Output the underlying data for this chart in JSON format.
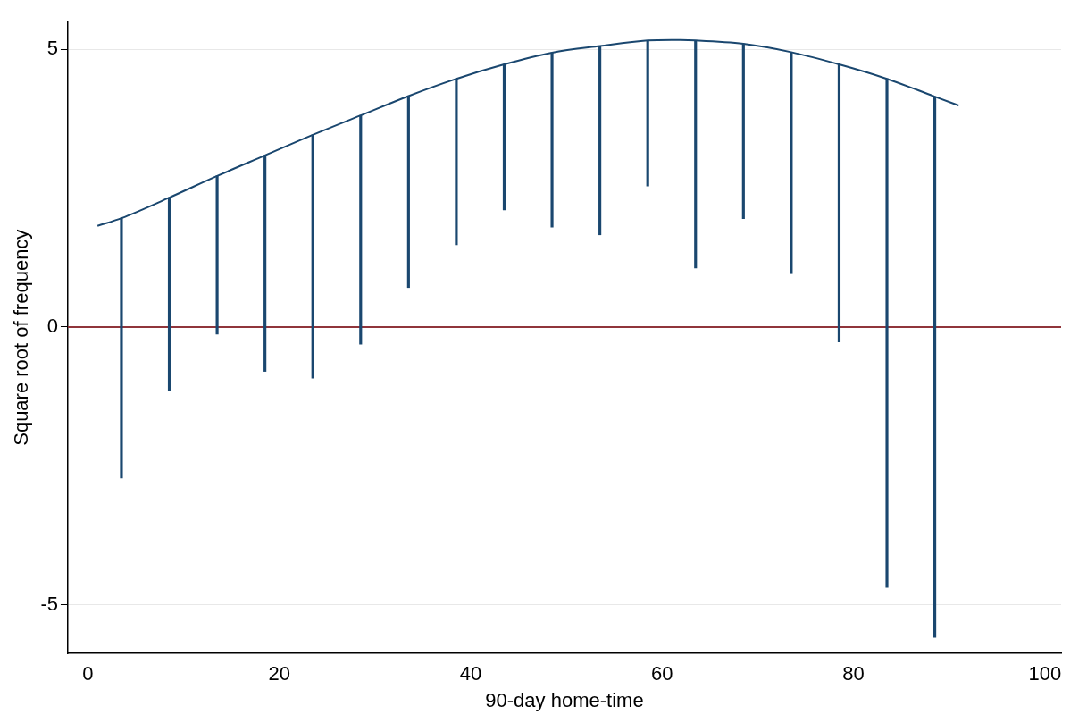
{
  "chart_data": {
    "type": "bar",
    "xlabel": "90-day home-time",
    "ylabel": "Square root of frequency",
    "xlim": [
      -2.1,
      101.7
    ],
    "xticks": [
      0,
      20,
      40,
      60,
      80,
      100
    ],
    "ylim": [
      -5.88,
      5.5
    ],
    "yticks": [
      -5,
      0,
      5
    ],
    "grid": "y",
    "legend": false,
    "series": [
      {
        "color": "#1a476f",
        "x": [
          3.5,
          8.5,
          13.5,
          18.5,
          23.5,
          28.5,
          33.5,
          38.5,
          43.5,
          48.5,
          53.5,
          58.5,
          63.5,
          68.5,
          73.5,
          78.5,
          83.5,
          88.5
        ],
        "base": [
          -2.72,
          -1.14,
          -0.13,
          -0.8,
          -0.92,
          -0.31,
          0.71,
          1.48,
          2.11,
          1.8,
          1.66,
          2.54,
          1.06,
          1.95,
          0.96,
          -0.27,
          -4.69,
          -5.59
        ],
        "values": [
          4.68,
          3.47,
          2.85,
          3.89,
          4.38,
          4.12,
          3.45,
          2.99,
          2.62,
          3.14,
          3.4,
          2.62,
          4.1,
          3.15,
          3.99,
          5.0,
          9.16,
          9.74
        ]
      },
      {
        "type": "line",
        "color": "#1a476f",
        "marker": "none",
        "x": [
          1,
          3.5,
          8.5,
          13.5,
          18.5,
          23.5,
          28.5,
          33.5,
          38.5,
          43.5,
          48.5,
          53.5,
          58.5,
          61,
          63.5,
          68.5,
          73.5,
          78.5,
          83.5,
          88.5,
          91
        ],
        "values": [
          1.82,
          1.96,
          2.33,
          2.72,
          3.09,
          3.46,
          3.81,
          4.16,
          4.47,
          4.73,
          4.94,
          5.06,
          5.16,
          5.17,
          5.16,
          5.1,
          4.95,
          4.73,
          4.47,
          4.15,
          3.99
        ]
      }
    ],
    "ref_lines": [
      {
        "axis": "y",
        "value": 0,
        "color": "#90353b"
      }
    ]
  }
}
